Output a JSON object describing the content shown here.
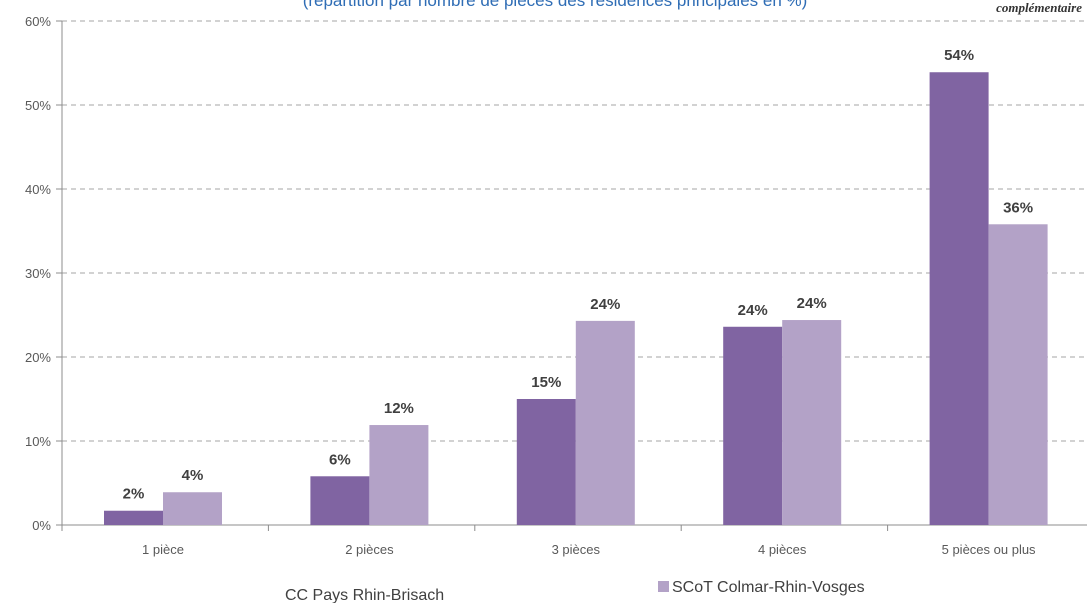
{
  "chart_data": {
    "type": "bar",
    "title": "(répartition par nombre de pièces des résidences principales en %)",
    "note": "complémentaire",
    "categories": [
      "1 pièce",
      "2 pièces",
      "3 pièces",
      "4 pièces",
      "5 pièces ou plus"
    ],
    "series": [
      {
        "name": "CC Pays Rhin-Brisach",
        "color": "#8064a2",
        "values": [
          1.7,
          5.8,
          15.0,
          23.6,
          53.9
        ],
        "labels": [
          "2%",
          "6%",
          "15%",
          "24%",
          "54%"
        ]
      },
      {
        "name": "SCoT Colmar-Rhin-Vosges",
        "color": "#b3a2c7",
        "values": [
          3.9,
          11.9,
          24.3,
          24.4,
          35.8
        ],
        "labels": [
          "4%",
          "12%",
          "24%",
          "24%",
          "36%"
        ]
      }
    ],
    "yticks": [
      "0%",
      "10%",
      "20%",
      "30%",
      "40%",
      "50%",
      "60%"
    ],
    "ylim": [
      0,
      60
    ],
    "grid": true,
    "legend_position": "bottom"
  }
}
